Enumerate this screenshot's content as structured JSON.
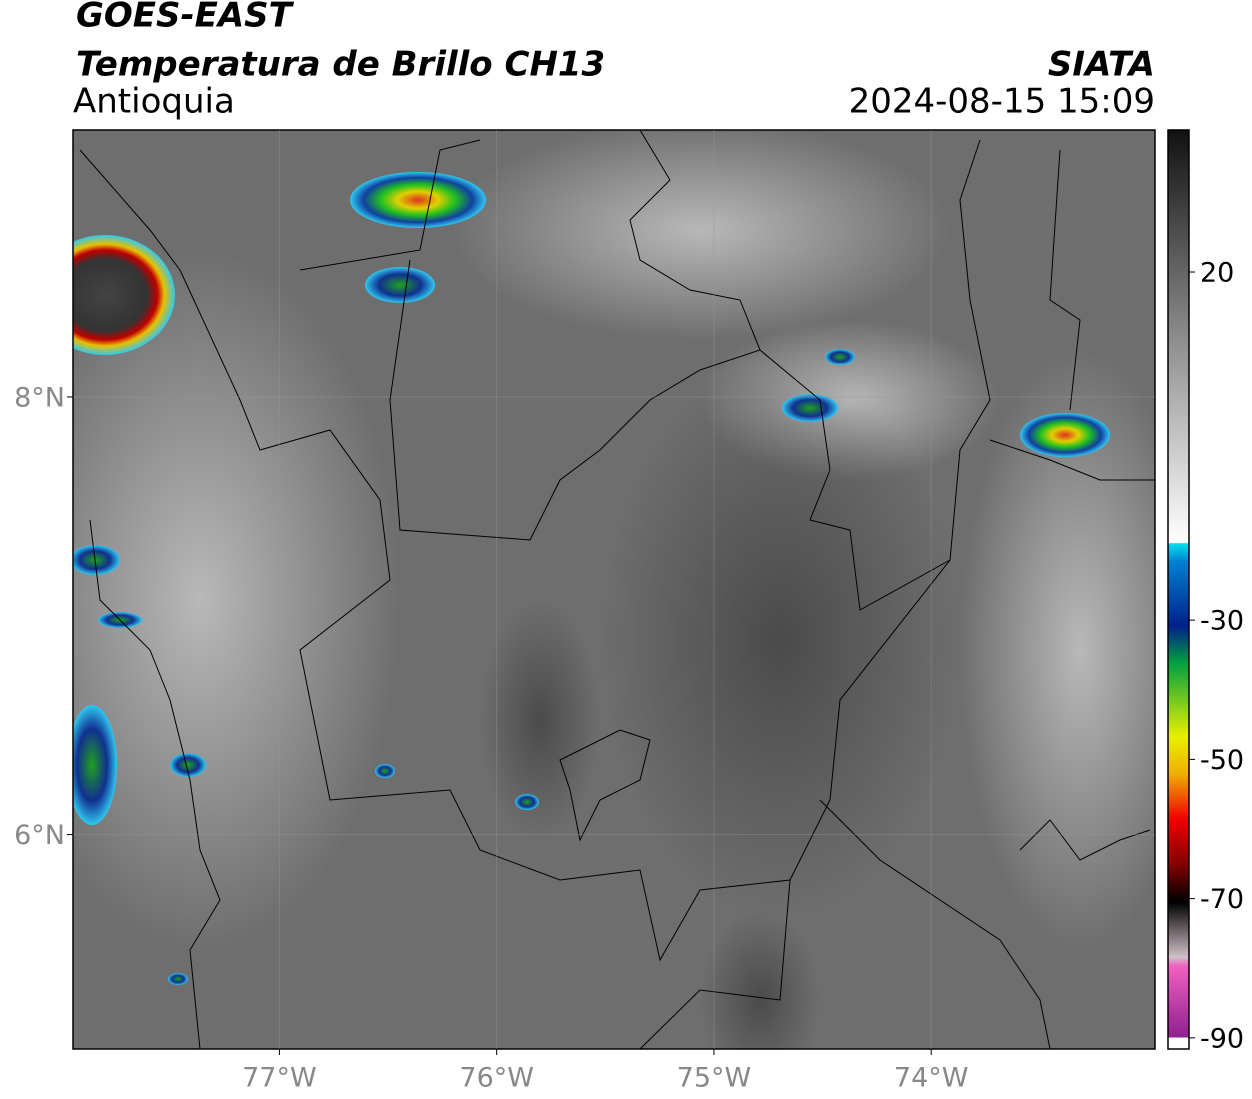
{
  "header": {
    "title": "GOES-EAST",
    "product": "Temperatura de Brillo CH13",
    "region": "Antioquia",
    "source": "SIATA",
    "datetime": "2024-08-15 15:09"
  },
  "map": {
    "xlim": [
      -77.95,
      -72.97
    ],
    "ylim": [
      5.02,
      9.22
    ],
    "xticks": [
      {
        "value": -77,
        "label": "77°W"
      },
      {
        "value": -76,
        "label": "76°W"
      },
      {
        "value": -75,
        "label": "75°W"
      },
      {
        "value": -74,
        "label": "74°W"
      }
    ],
    "yticks": [
      {
        "value": 8,
        "label": "8°N"
      },
      {
        "value": 6,
        "label": "6°N"
      }
    ],
    "grid": true
  },
  "colorbar": {
    "lim": [
      -91.6,
      40.4
    ],
    "ticks": [
      20,
      -30,
      -50,
      -70,
      -90
    ]
  }
}
